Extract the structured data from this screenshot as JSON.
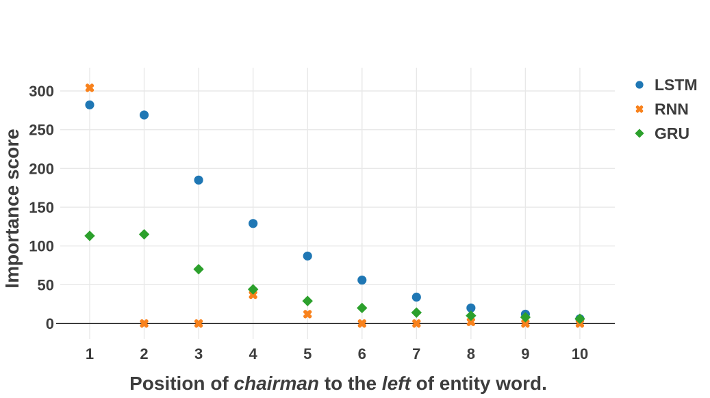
{
  "chart_data": {
    "type": "scatter",
    "title": "",
    "ylabel": "Importance score",
    "xlabel_plain": "Position of chairman to the left of entity word.",
    "xlabel_segments": [
      {
        "text": "Position of ",
        "italic": false
      },
      {
        "text": "chairman",
        "italic": true
      },
      {
        "text": " to the ",
        "italic": false
      },
      {
        "text": "left",
        "italic": true
      },
      {
        "text": " of entity word.",
        "italic": false
      }
    ],
    "x": [
      1,
      2,
      3,
      4,
      5,
      6,
      7,
      8,
      9,
      10
    ],
    "xticks": [
      "1",
      "2",
      "3",
      "4",
      "5",
      "6",
      "7",
      "8",
      "9",
      "10"
    ],
    "yticks": [
      0,
      50,
      100,
      150,
      200,
      250,
      300
    ],
    "ylim": [
      -20,
      330
    ],
    "xlim": [
      0.5,
      10.6
    ],
    "grid": true,
    "zero_line": true,
    "legend_position": "outside-top-right",
    "series": [
      {
        "name": "LSTM",
        "marker": "circle",
        "color": "#1f77b4",
        "values": [
          282,
          269,
          185,
          129,
          87,
          56,
          34,
          20,
          12,
          6
        ]
      },
      {
        "name": "RNN",
        "marker": "x",
        "color": "#f8821d",
        "values": [
          304,
          0,
          0,
          37,
          12,
          0,
          0,
          2,
          0,
          0
        ]
      },
      {
        "name": "GRU",
        "marker": "diamond",
        "color": "#2ca02c",
        "values": [
          113,
          115,
          70,
          44,
          29,
          20,
          14,
          10,
          8,
          6
        ]
      }
    ]
  },
  "colors": {
    "background": "#ffffff",
    "text": "#3d3d3d",
    "grid": "#e8e8e8",
    "zero_line": "#3d3d3d"
  }
}
